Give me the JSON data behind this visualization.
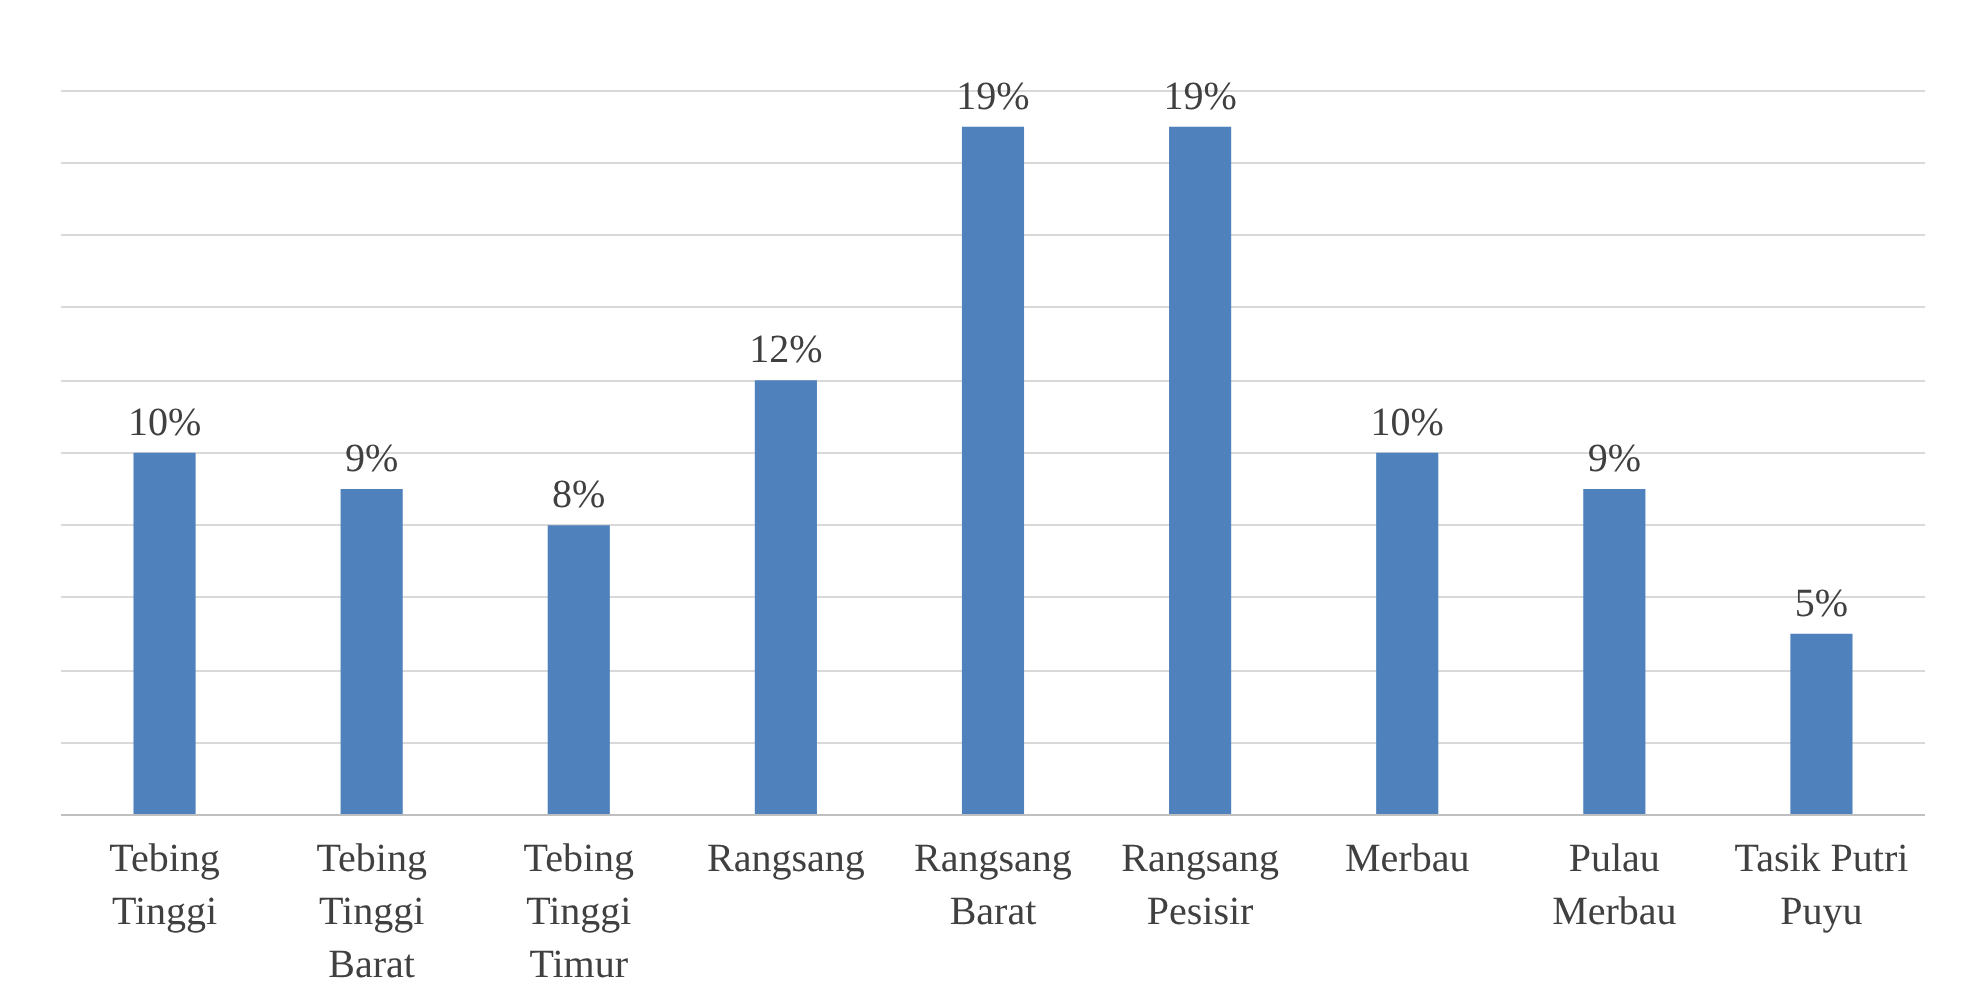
{
  "chart_data": {
    "type": "bar",
    "categories": [
      "Tebing Tinggi",
      "Tebing Tinggi Barat",
      "Tebing Tinggi Timur",
      "Rangsang",
      "Rangsang Barat",
      "Rangsang Pesisir",
      "Merbau",
      "Pulau Merbau",
      "Tasik Putri Puyu"
    ],
    "values": [
      10,
      9,
      8,
      12,
      19,
      19,
      10,
      9,
      5
    ],
    "value_labels": [
      "10%",
      "9%",
      "8%",
      "12%",
      "19%",
      "19%",
      "10%",
      "9%",
      "5%"
    ],
    "color": "#4f81bd",
    "yticks": [
      {
        "value": 0,
        "label": null
      },
      {
        "value": 2,
        "label": null
      },
      {
        "value": 4,
        "label": null
      },
      {
        "value": 6,
        "label": null
      },
      {
        "value": 8,
        "label": null
      },
      {
        "value": 10,
        "label": null
      },
      {
        "value": 12,
        "label": null
      },
      {
        "value": 14,
        "label": null
      },
      {
        "value": 16,
        "label": null
      },
      {
        "value": 18,
        "label": null
      },
      {
        "value": 20,
        "label": null
      }
    ],
    "grid": "y",
    "tick_labels": "x"
  }
}
